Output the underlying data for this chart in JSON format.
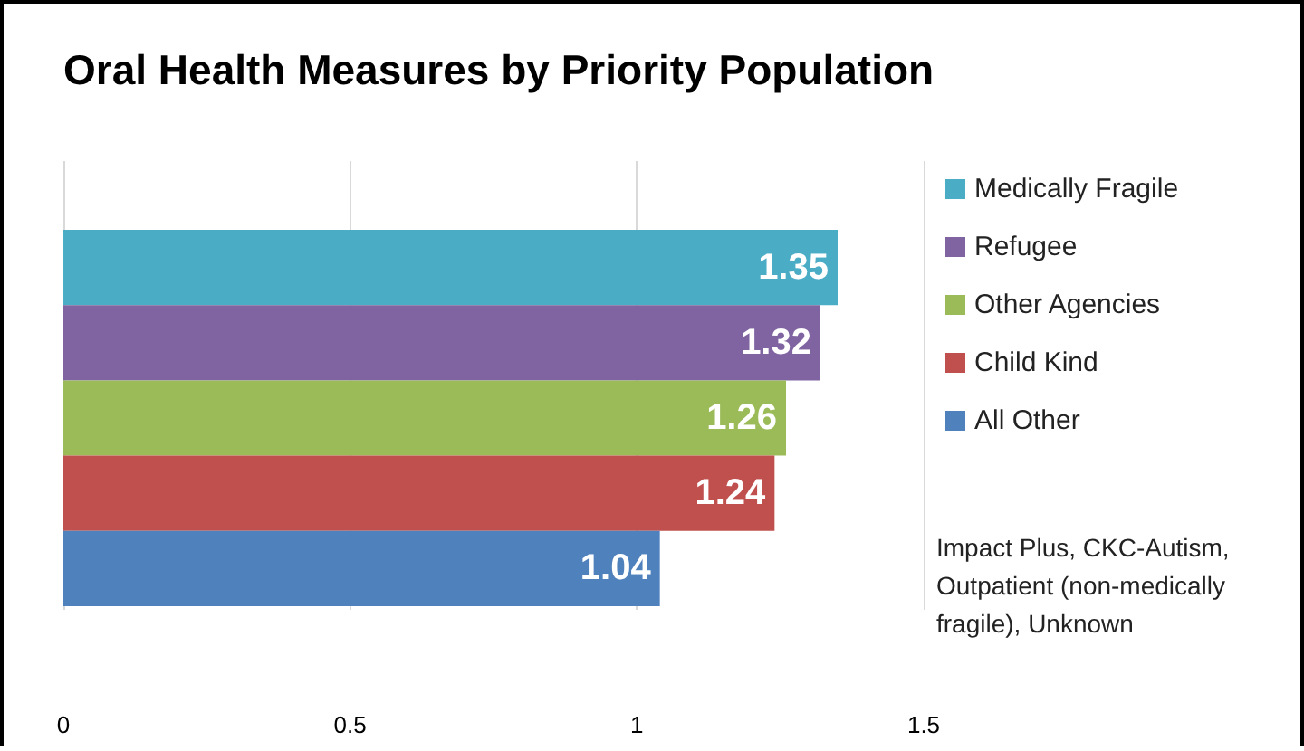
{
  "chart_data": {
    "type": "bar",
    "orientation": "horizontal",
    "stacked": true,
    "title": "Oral Health Measures by Priority Population",
    "categories": [
      null,
      null,
      null,
      null,
      null
    ],
    "series": [
      {
        "name": "Medically Fragile",
        "color": "#4bacc6",
        "values": [
          1.35,
          null,
          null,
          null,
          null
        ]
      },
      {
        "name": "Refugee",
        "color": "#8064a2",
        "values": [
          null,
          1.32,
          null,
          null,
          null
        ]
      },
      {
        "name": "Other Agencies",
        "color": "#9bbb59",
        "values": [
          null,
          null,
          1.26,
          null,
          null
        ]
      },
      {
        "name": "Child Kind",
        "color": "#c0504d",
        "values": [
          null,
          null,
          null,
          1.24,
          null
        ]
      },
      {
        "name": "All Other",
        "color": "#4f81bd",
        "values": [
          null,
          null,
          null,
          null,
          1.04
        ]
      }
    ],
    "xlim": [
      0,
      1.5
    ],
    "xticks": [
      0,
      0.5,
      1,
      1.5
    ],
    "grid": "x",
    "legend": "right",
    "data_labels": true,
    "annotations": [
      "Impact Plus, CKC-Autism, Outpatient (non-medically fragile), Unknown"
    ]
  }
}
